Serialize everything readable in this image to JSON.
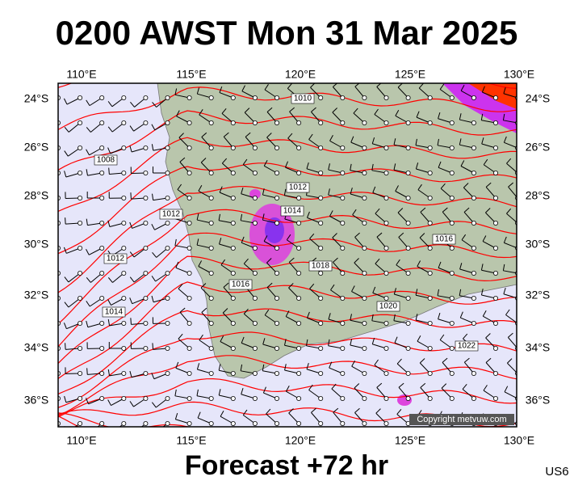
{
  "title": "0200 AWST Mon 31 Mar 2025",
  "footer": "Forecast +72 hr",
  "code": "US6",
  "copyright": "Copyright metvuw.com",
  "lon_labels": [
    "110°E",
    "115°E",
    "120°E",
    "125°E",
    "130°E"
  ],
  "lat_labels": [
    "24°S",
    "26°S",
    "28°S",
    "30°S",
    "32°S",
    "34°S",
    "36°S"
  ],
  "isobar_labels": [
    "1010",
    "1008",
    "1012",
    "1014",
    "1012",
    "1012",
    "1014",
    "1016",
    "1018",
    "1016",
    "1020",
    "1022"
  ]
}
